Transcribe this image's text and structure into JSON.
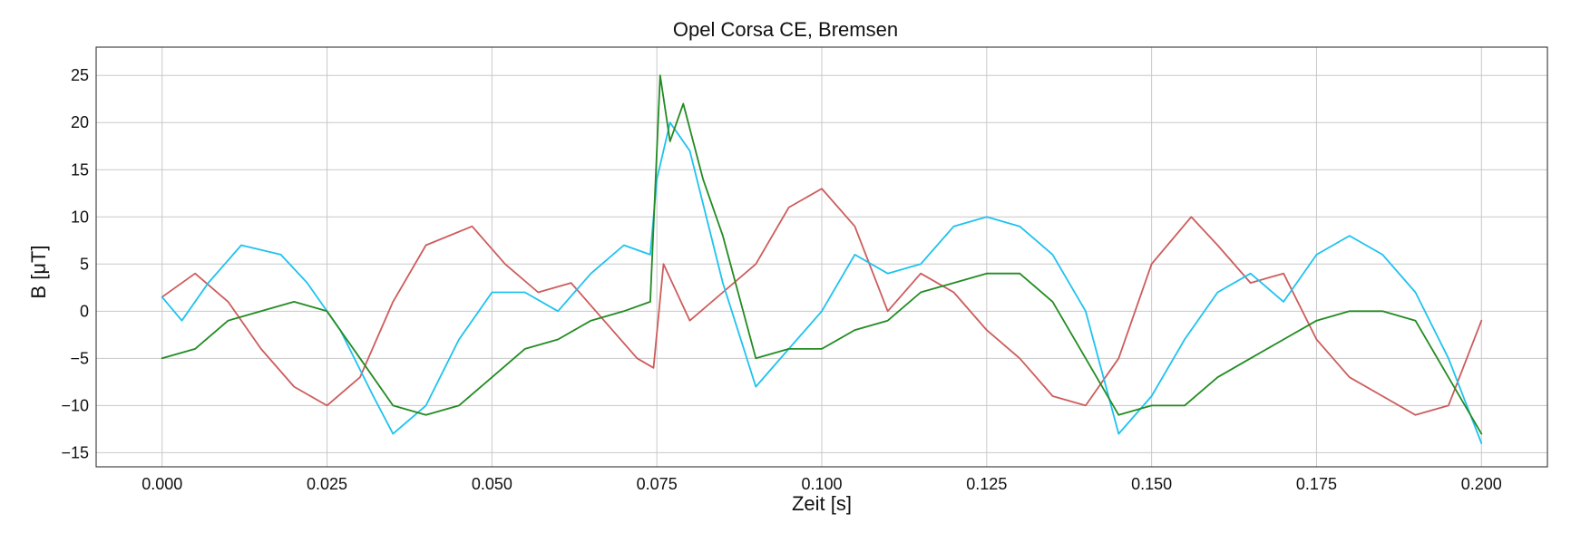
{
  "chart_data": {
    "type": "line",
    "title": "Opel Corsa CE, Bremsen",
    "xlabel": "Zeit [s]",
    "ylabel": "B [μT]",
    "xlim": [
      -0.01,
      0.21
    ],
    "ylim": [
      -16.5,
      28
    ],
    "grid": true,
    "x_ticks": [
      0.0,
      0.025,
      0.05,
      0.075,
      0.1,
      0.125,
      0.15,
      0.175,
      0.2
    ],
    "x_tick_labels": [
      "0.000",
      "0.025",
      "0.050",
      "0.075",
      "0.100",
      "0.125",
      "0.150",
      "0.175",
      "0.200"
    ],
    "y_ticks": [
      -15,
      -10,
      -5,
      0,
      5,
      10,
      15,
      20,
      25
    ],
    "y_tick_labels": [
      "−15",
      "−10",
      "−5",
      "0",
      "5",
      "10",
      "15",
      "20",
      "25"
    ],
    "series": [
      {
        "color": "#cd5c5c",
        "x": [
          0,
          0.005,
          0.01,
          0.015,
          0.02,
          0.025,
          0.03,
          0.035,
          0.04,
          0.047,
          0.052,
          0.057,
          0.062,
          0.067,
          0.072,
          0.0745,
          0.076,
          0.08,
          0.085,
          0.09,
          0.095,
          0.1,
          0.105,
          0.11,
          0.115,
          0.12,
          0.125,
          0.13,
          0.135,
          0.14,
          0.145,
          0.15,
          0.156,
          0.16,
          0.165,
          0.17,
          0.175,
          0.18,
          0.185,
          0.19,
          0.195,
          0.2
        ],
        "y": [
          1.5,
          4,
          1,
          -4,
          -8,
          -10,
          -7,
          1,
          7,
          9,
          5,
          2,
          3,
          -1,
          -5,
          -6,
          5,
          -1,
          2,
          5,
          11,
          13,
          9,
          0,
          4,
          2,
          -2,
          -5,
          -9,
          -10,
          -5,
          5,
          10,
          7,
          3,
          4,
          -3,
          -7,
          -9,
          -11,
          -10,
          -1
        ]
      },
      {
        "color": "#1ec2f0",
        "x": [
          0,
          0.003,
          0.007,
          0.012,
          0.018,
          0.022,
          0.027,
          0.032,
          0.035,
          0.04,
          0.045,
          0.05,
          0.055,
          0.06,
          0.065,
          0.07,
          0.074,
          0.075,
          0.077,
          0.08,
          0.085,
          0.09,
          0.095,
          0.1,
          0.105,
          0.11,
          0.115,
          0.12,
          0.125,
          0.13,
          0.135,
          0.14,
          0.145,
          0.15,
          0.155,
          0.16,
          0.165,
          0.17,
          0.175,
          0.18,
          0.185,
          0.19,
          0.195,
          0.2
        ],
        "y": [
          1.5,
          -1,
          3,
          7,
          6,
          3,
          -2,
          -9,
          -13,
          -10,
          -3,
          2,
          2,
          0,
          4,
          7,
          6,
          14,
          20,
          17,
          3,
          -8,
          -4,
          0,
          6,
          4,
          5,
          9,
          10,
          9,
          6,
          0,
          -13,
          -9,
          -3,
          2,
          4,
          1,
          6,
          8,
          6,
          2,
          -5,
          -14
        ]
      },
      {
        "color": "#228b22",
        "x": [
          0,
          0.005,
          0.01,
          0.015,
          0.02,
          0.025,
          0.03,
          0.035,
          0.04,
          0.045,
          0.05,
          0.055,
          0.06,
          0.065,
          0.07,
          0.074,
          0.0755,
          0.077,
          0.079,
          0.082,
          0.085,
          0.09,
          0.095,
          0.1,
          0.105,
          0.11,
          0.115,
          0.12,
          0.125,
          0.13,
          0.135,
          0.14,
          0.145,
          0.15,
          0.155,
          0.16,
          0.165,
          0.17,
          0.175,
          0.18,
          0.185,
          0.19,
          0.195,
          0.2
        ],
        "y": [
          -5,
          -4,
          -1,
          0,
          1,
          0,
          -5,
          -10,
          -11,
          -10,
          -7,
          -4,
          -3,
          -1,
          0,
          1,
          25,
          18,
          22,
          14,
          8,
          -5,
          -4,
          -4,
          -2,
          -1,
          2,
          3,
          4,
          4,
          1,
          -5,
          -11,
          -10,
          -10,
          -7,
          -5,
          -3,
          -1,
          0,
          0,
          -1,
          -7,
          -13
        ]
      }
    ]
  }
}
